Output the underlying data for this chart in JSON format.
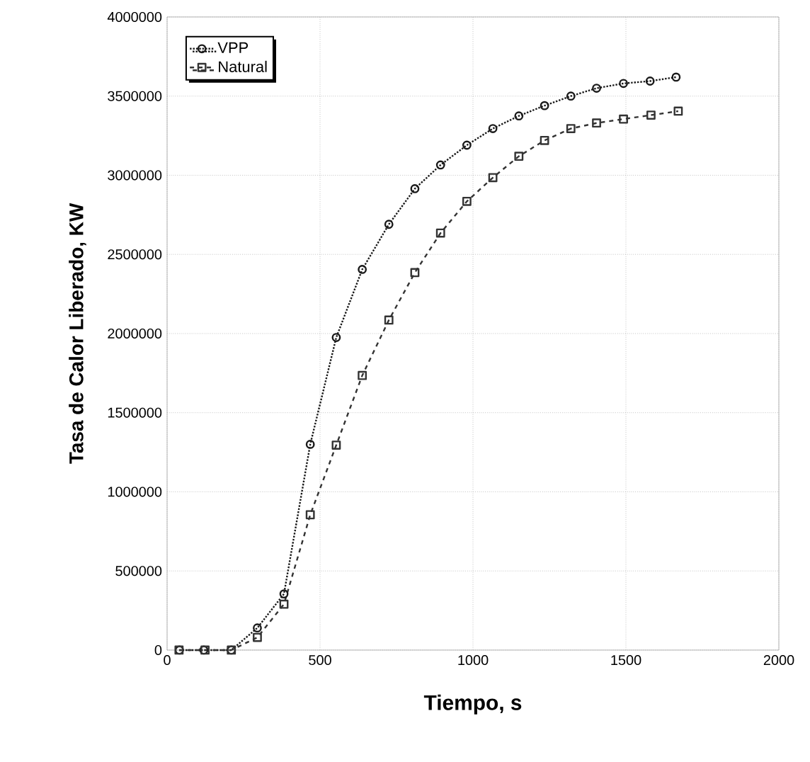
{
  "chart_data": {
    "type": "line",
    "xlabel": "Tiempo, s",
    "ylabel": "Tasa de Calor Liberado, KW",
    "xlim": [
      0,
      2000
    ],
    "xticks": [
      0,
      500,
      1000,
      1500,
      2000
    ],
    "ylim": [
      0,
      4000000
    ],
    "yticks": [
      0,
      500000,
      1000000,
      1500000,
      2000000,
      2500000,
      3000000,
      3500000,
      4000000
    ],
    "grid": true,
    "legend": "top left",
    "series": [
      {
        "name": "VPP",
        "color": "#1a1a1a",
        "marker": "circle",
        "line_style": "dotted",
        "x": [
          40,
          120,
          210,
          295,
          382,
          468,
          553,
          638,
          725,
          810,
          894,
          980,
          1065,
          1150,
          1234,
          1320,
          1404,
          1492,
          1579,
          1664
        ],
        "values": [
          0,
          0,
          0,
          140000,
          355000,
          1300000,
          1975000,
          2405000,
          2690000,
          2915000,
          3065000,
          3190000,
          3295000,
          3375000,
          3440000,
          3500000,
          3550000,
          3580000,
          3595000,
          3620000
        ]
      },
      {
        "name": "Natural",
        "color": "#333333",
        "marker": "square",
        "line_style": "dashed",
        "x": [
          39,
          124,
          210,
          295,
          382,
          468,
          553,
          638,
          725,
          810,
          894,
          980,
          1065,
          1150,
          1234,
          1320,
          1404,
          1492,
          1582,
          1671
        ],
        "values": [
          0,
          0,
          0,
          80000,
          290000,
          855000,
          1295000,
          1735000,
          2085000,
          2385000,
          2635000,
          2835000,
          2985000,
          3120000,
          3220000,
          3295000,
          3330000,
          3355000,
          3380000,
          3405000
        ]
      }
    ]
  }
}
